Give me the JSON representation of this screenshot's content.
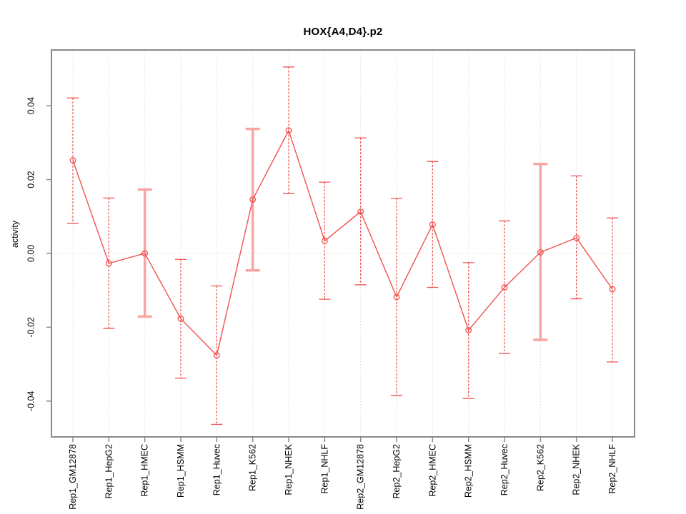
{
  "window": {
    "background": "#ffffff"
  },
  "chart_data": {
    "type": "line",
    "title": "HOX{A4,D4}.p2",
    "xlabel": "",
    "ylabel": "activity",
    "legend": "none",
    "grid": "vertical dotted gridline at each category plus dotted horizontal line at y=0",
    "marker": "open-circle",
    "error_bar_styles_note": "thin = dashed red error bar, thick = wide light-pink solid error bar",
    "categories": [
      "Rep1_GM12878",
      "Rep1_HepG2",
      "Rep1_HMEC",
      "Rep1_HSMM",
      "Rep1_Huvec",
      "Rep1_K562",
      "Rep1_NHEK",
      "Rep1_NHLF",
      "Rep2_GM12878",
      "Rep2_HepG2",
      "Rep2_HMEC",
      "Rep2_HSMM",
      "Rep2_Huvec",
      "Rep2_K562",
      "Rep2_NHEK",
      "Rep2_NHLF"
    ],
    "series": [
      {
        "name": "activity",
        "values": [
          0.0252,
          -0.0027,
          0.0,
          -0.0177,
          -0.0276,
          0.0146,
          0.0333,
          0.0034,
          0.0113,
          -0.0118,
          0.0078,
          -0.0208,
          -0.0092,
          0.0003,
          0.0042,
          -0.0097
        ]
      }
    ],
    "error_bars": {
      "lower": [
        0.0081,
        -0.0203,
        -0.0171,
        -0.0338,
        -0.0463,
        -0.0046,
        0.0162,
        -0.0124,
        -0.0085,
        -0.0385,
        -0.0092,
        -0.0393,
        -0.0271,
        -0.0234,
        -0.0123,
        -0.0294
      ],
      "upper": [
        0.0421,
        0.015,
        0.0173,
        -0.0016,
        -0.0088,
        0.0337,
        0.0505,
        0.0193,
        0.0313,
        0.0149,
        0.0249,
        -0.0025,
        0.0088,
        0.0242,
        0.021,
        0.0096
      ],
      "style": [
        "thin",
        "thin",
        "thick",
        "thin",
        "thin",
        "thick",
        "thin",
        "thin",
        "thin",
        "thin",
        "thin",
        "thin",
        "thin",
        "thick",
        "thin",
        "thin"
      ]
    },
    "yticks": [
      -0.04,
      -0.02,
      0,
      0.02,
      0.04
    ],
    "ytick_labels": [
      "-0.04",
      "-0.02",
      "0.00",
      "0.02",
      "0.04"
    ],
    "ylim": [
      -0.0497,
      0.0551
    ],
    "colors": {
      "line": "#f0524f",
      "point_stroke": "#f0524f",
      "point_fill": "#ffffff",
      "error_thin": "#f0524f",
      "error_thick": "#f7a6a4",
      "grid": "#dcdcdc",
      "box": "#898989",
      "tick": "#898989",
      "text": "#000000"
    }
  }
}
